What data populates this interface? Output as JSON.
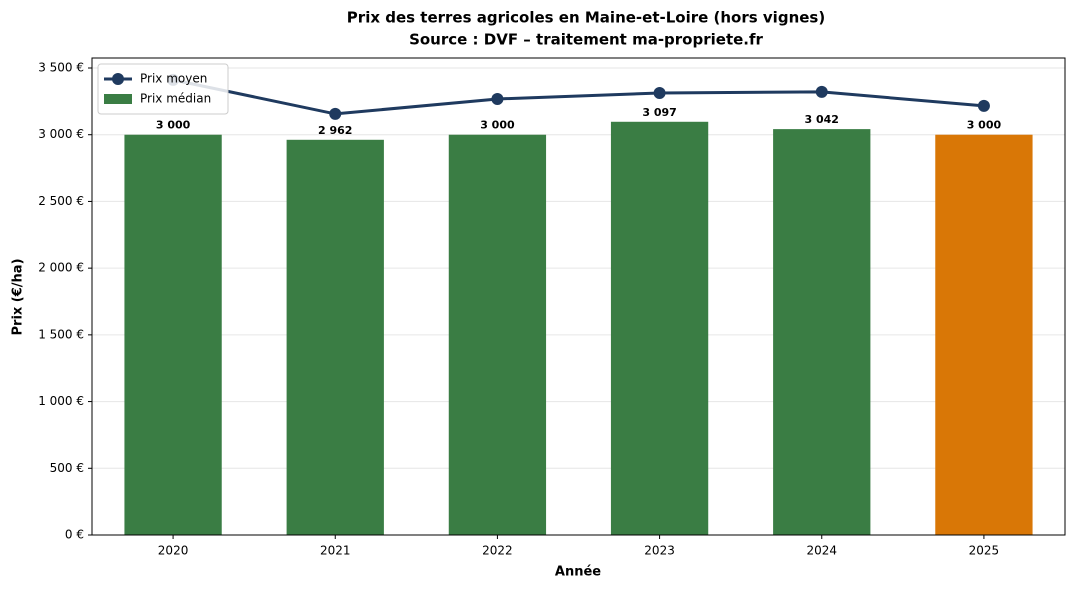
{
  "chart_data": {
    "type": "bar_line",
    "title": "Prix des terres agricoles en Maine-et-Loire (hors vignes)",
    "subtitle": "Source : DVF – traitement ma-propriete.fr",
    "x_label": "Année",
    "y_label": "Prix (€/ha)",
    "categories": [
      "2020",
      "2021",
      "2022",
      "2023",
      "2024",
      "2025"
    ],
    "series": [
      {
        "name": "Prix moyen",
        "type": "line",
        "color": "#1f3a5f",
        "values": [
          3411,
          3156,
          3268,
          3313,
          3321,
          3216
        ]
      },
      {
        "name": "Prix médian",
        "type": "bar",
        "color": "#3a7d44",
        "colors": [
          "#3a7d44",
          "#3a7d44",
          "#3a7d44",
          "#3a7d44",
          "#3a7d44",
          "#d97706"
        ],
        "values": [
          3000,
          2962,
          3000,
          3097,
          3042,
          3000
        ],
        "value_labels": [
          "3 000",
          "2 962",
          "3 000",
          "3 097",
          "3 042",
          "3 000"
        ]
      }
    ],
    "ylim": [
      0,
      3575
    ],
    "yticks": [
      {
        "value": 0,
        "label": "0 €"
      },
      {
        "value": 500,
        "label": "500 €"
      },
      {
        "value": 1000,
        "label": "1 000 €"
      },
      {
        "value": 1500,
        "label": "1 500 €"
      },
      {
        "value": 2000,
        "label": "2 000 €"
      },
      {
        "value": 2500,
        "label": "2 500 €"
      },
      {
        "value": 3000,
        "label": "3 000 €"
      },
      {
        "value": 3500,
        "label": "3 500 €"
      }
    ],
    "grid": true,
    "legend": "upper left"
  }
}
